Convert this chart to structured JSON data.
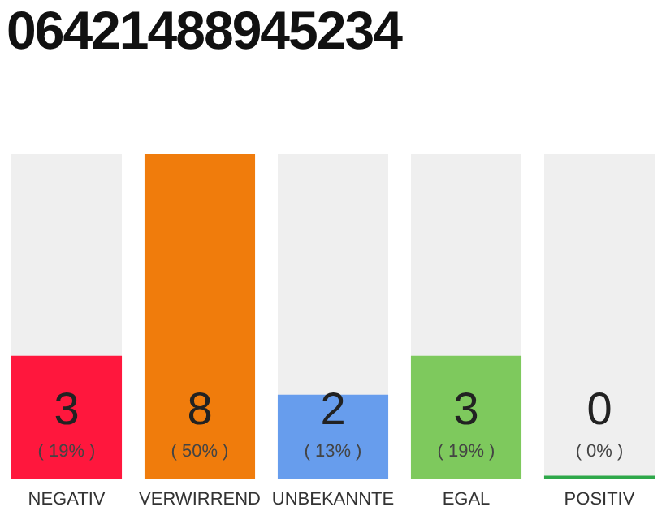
{
  "chart_data": {
    "type": "bar",
    "title": "06421488945234",
    "categories": [
      "NEGATIV",
      "VERWIRREND",
      "UNBEKANNTE",
      "EGAL",
      "POSITIV"
    ],
    "values": [
      19,
      50,
      13,
      19,
      0
    ],
    "colors": [
      "#ff173d",
      "#f07c0c",
      "#679ded",
      "#7ec95d",
      "#2ea84a"
    ],
    "value_labels": [
      "( 19% )",
      "( 50% )",
      "( 13% )",
      "( 19% )",
      "( 0% )"
    ],
    "annotations": [
      "3",
      "8",
      "2",
      "3",
      "0"
    ],
    "ylim": [
      0,
      50
    ],
    "tick_labels": "x",
    "grid": false,
    "legend": false
  }
}
